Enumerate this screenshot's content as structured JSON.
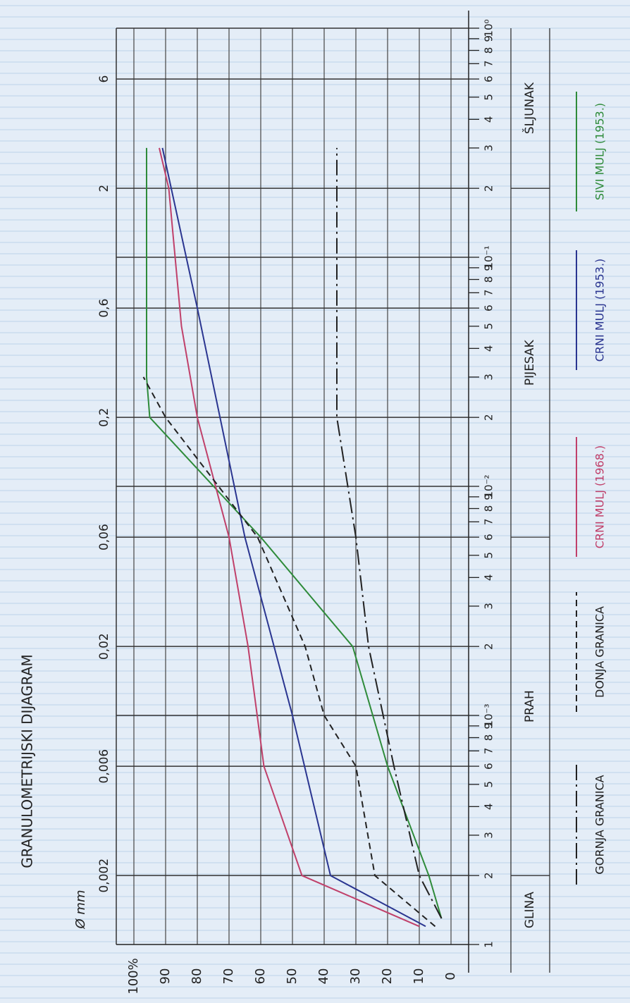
{
  "chart_data": {
    "type": "line",
    "title": "GRANULOMETRIJSKI DIJAGRAM",
    "x_label": "Ø mm",
    "log_x": true,
    "xlim": [
      0.001,
      10
    ],
    "ylim": [
      0,
      100
    ],
    "yticks": [
      0,
      10,
      20,
      30,
      40,
      50,
      60,
      70,
      80,
      {
        "value": 90,
        "label": "90"
      },
      {
        "value": 100,
        "label": "100%"
      }
    ],
    "xticks": [
      {
        "value": 0.001,
        "label": "1"
      },
      {
        "value": 0.002,
        "label": "2"
      },
      {
        "value": 0.003,
        "label": "3"
      },
      {
        "value": 0.004,
        "label": "4"
      },
      {
        "value": 0.005,
        "label": "5"
      },
      {
        "value": 0.006,
        "label": "6"
      },
      {
        "value": 0.007,
        "label": "7"
      },
      {
        "value": 0.008,
        "label": "8"
      },
      {
        "value": 0.009,
        "label": "9"
      },
      {
        "value": 0.01,
        "label": "10⁻³"
      },
      {
        "value": 0.02,
        "label": "2"
      },
      {
        "value": 0.03,
        "label": "3"
      },
      {
        "value": 0.04,
        "label": "4"
      },
      {
        "value": 0.05,
        "label": "5"
      },
      {
        "value": 0.06,
        "label": "6"
      },
      {
        "value": 0.07,
        "label": "7"
      },
      {
        "value": 0.08,
        "label": "8"
      },
      {
        "value": 0.09,
        "label": "9"
      },
      {
        "value": 0.1,
        "label": "10⁻²"
      },
      {
        "value": 0.2,
        "label": "2"
      },
      {
        "value": 0.3,
        "label": "3"
      },
      {
        "value": 0.4,
        "label": "4"
      },
      {
        "value": 0.5,
        "label": "5"
      },
      {
        "value": 0.6,
        "label": "6"
      },
      {
        "value": 0.7,
        "label": "7"
      },
      {
        "value": 0.8,
        "label": "8"
      },
      {
        "value": 0.9,
        "label": "9"
      },
      {
        "value": 1,
        "label": "10⁻¹"
      },
      {
        "value": 2,
        "label": "2"
      },
      {
        "value": 3,
        "label": "3"
      },
      {
        "value": 4,
        "label": "4"
      },
      {
        "value": 5,
        "label": "5"
      },
      {
        "value": 6,
        "label": "6"
      },
      {
        "value": 7,
        "label": "7"
      },
      {
        "value": 8,
        "label": "8"
      },
      {
        "value": 9,
        "label": "9"
      },
      {
        "value": 10,
        "label": "10⁰"
      }
    ],
    "major_ticks": [
      {
        "value": 0.002,
        "label": "0,002"
      },
      {
        "value": 0.006,
        "label": "0,006"
      },
      {
        "value": 0.02,
        "label": "0,02"
      },
      {
        "value": 0.06,
        "label": "0,06"
      },
      {
        "value": 0.2,
        "label": "0,2"
      },
      {
        "value": 0.6,
        "label": "0,6"
      },
      {
        "value": 2,
        "label": "2"
      },
      {
        "value": 6,
        "label": "6"
      }
    ],
    "zones": [
      "GLINA",
      "PRAH",
      "PIJESAK",
      "ŠLJUNAK"
    ],
    "zone_bounds": [
      0.002,
      0.06,
      2
    ],
    "grid": true,
    "series": [
      {
        "name": "SIVI MULJ (1953.)",
        "color": "#2e8b3a",
        "dash": "none",
        "x": [
          0.0013,
          0.002,
          0.006,
          0.02,
          0.06,
          0.2,
          0.3,
          3
        ],
        "values": [
          3,
          7,
          20,
          31,
          60,
          95,
          96,
          96
        ]
      },
      {
        "name": "CRNI MULJ (1953.)",
        "color": "#2a3590",
        "dash": "none",
        "x": [
          0.0012,
          0.002,
          0.01,
          0.06,
          0.6,
          3
        ],
        "values": [
          8,
          38,
          50,
          65,
          80,
          91
        ]
      },
      {
        "name": "CRNI MULJ (1968.)",
        "color": "#c0406a",
        "dash": "none",
        "x": [
          0.0012,
          0.002,
          0.006,
          0.02,
          0.06,
          0.2,
          0.5,
          2,
          3
        ],
        "values": [
          10,
          47,
          59,
          64,
          70,
          80,
          85,
          89,
          92
        ]
      },
      {
        "name": "DONJA GRANICA",
        "color": "#222222",
        "dash": "9 6",
        "x": [
          0.0012,
          0.002,
          0.006,
          0.01,
          0.02,
          0.06,
          0.2,
          0.3
        ],
        "values": [
          5,
          24,
          30,
          40,
          46,
          61,
          90,
          97
        ]
      },
      {
        "name": "GORNJA GRANICA",
        "color": "#222222",
        "dash": "22 6 3 6",
        "x": [
          0.0013,
          0.002,
          0.006,
          0.02,
          0.06,
          0.2,
          3
        ],
        "values": [
          3,
          10,
          18,
          26,
          30,
          36,
          36
        ]
      }
    ]
  }
}
